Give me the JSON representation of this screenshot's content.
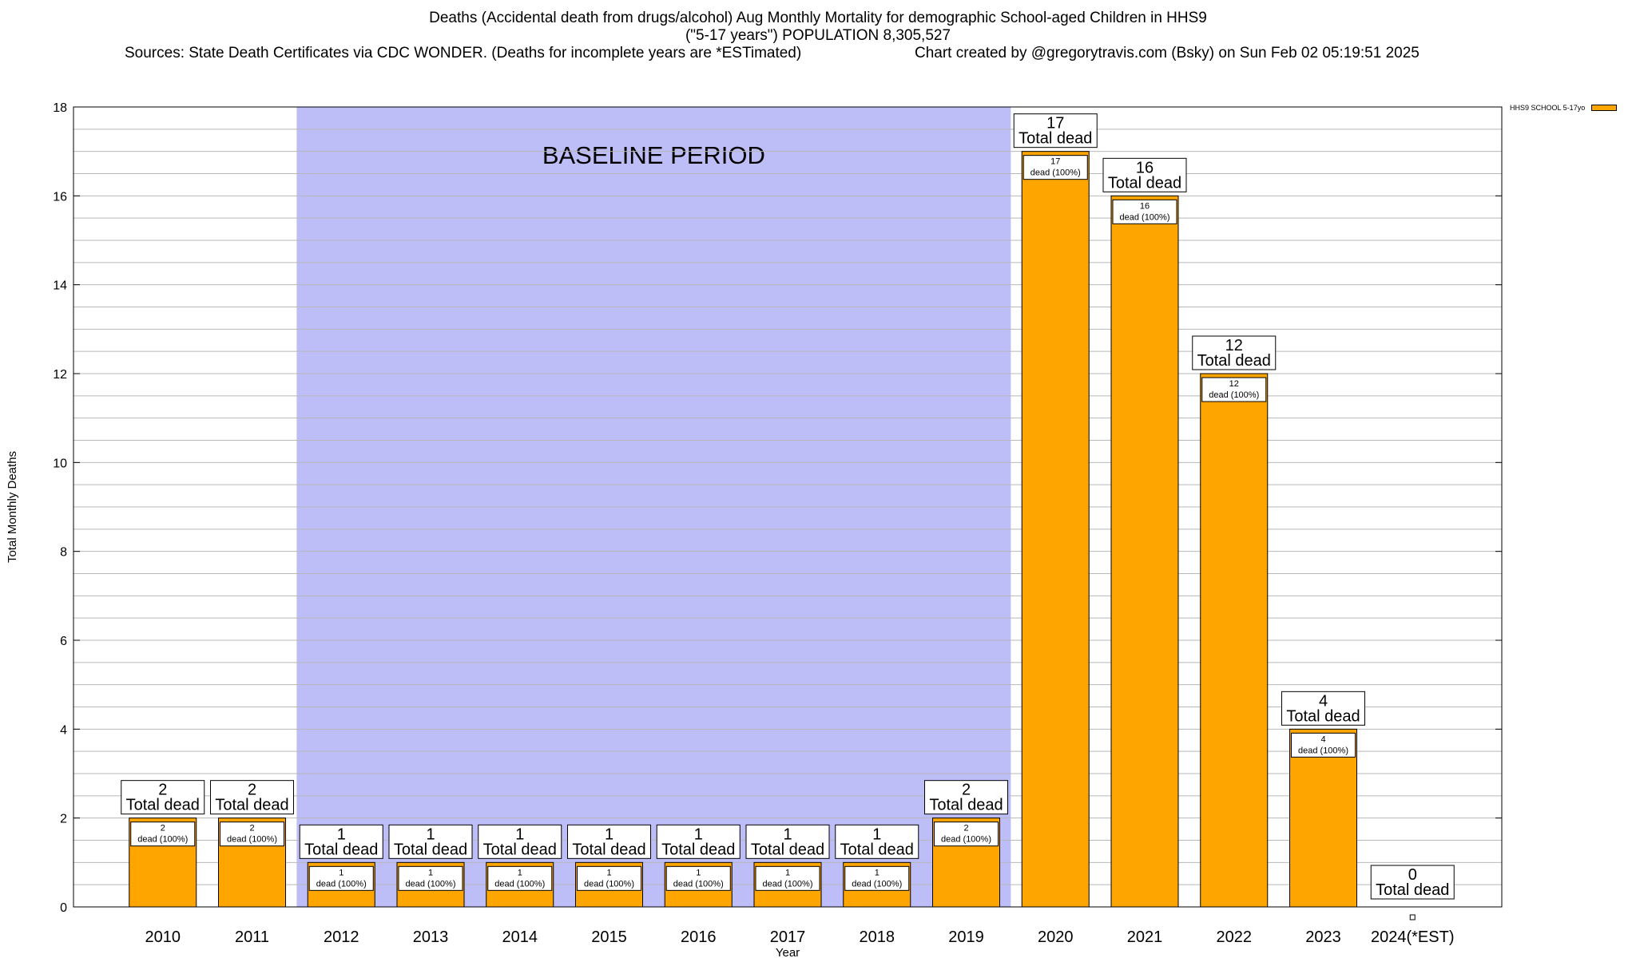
{
  "header": {
    "title_line1": "Deaths (Accidental death from drugs/alcohol) Aug Monthly Mortality for demographic School-aged Children in HHS9",
    "title_line2": "(\"5-17 years\") POPULATION 8,305,527",
    "sources": "Sources: State Death Certificates via CDC WONDER. (Deaths for incomplete years are *ESTimated)",
    "credit": "Chart created by @gregorytravis.com (Bsky) on Sun Feb 02 05:19:51 2025"
  },
  "colors": {
    "bar": "#FFA500",
    "baseline_shade": "#BDBDF8",
    "grid": "#B8B8B8"
  },
  "chart_data": {
    "type": "bar",
    "xlabel": "Year",
    "ylabel": "Total Monthly Deaths",
    "ylim": [
      0,
      18
    ],
    "yticks": [
      0,
      2,
      4,
      6,
      8,
      10,
      12,
      14,
      16,
      18
    ],
    "grid": true,
    "legend_position": "top-right",
    "categories": [
      "2010",
      "2011",
      "2012",
      "2013",
      "2014",
      "2015",
      "2016",
      "2017",
      "2018",
      "2019",
      "2020",
      "2021",
      "2022",
      "2023",
      "2024(*EST)"
    ],
    "series": [
      {
        "name": "HHS9 SCHOOL 5-17yo",
        "color": "#FFA500",
        "values": [
          2,
          2,
          1,
          1,
          1,
          1,
          1,
          1,
          1,
          2,
          17,
          16,
          12,
          4,
          0
        ]
      }
    ],
    "total_labels": [
      {
        "value": "2",
        "text": "Total dead"
      },
      {
        "value": "2",
        "text": "Total dead"
      },
      {
        "value": "1",
        "text": "Total dead"
      },
      {
        "value": "1",
        "text": "Total dead"
      },
      {
        "value": "1",
        "text": "Total dead"
      },
      {
        "value": "1",
        "text": "Total dead"
      },
      {
        "value": "1",
        "text": "Total dead"
      },
      {
        "value": "1",
        "text": "Total dead"
      },
      {
        "value": "1",
        "text": "Total dead"
      },
      {
        "value": "2",
        "text": "Total dead"
      },
      {
        "value": "17",
        "text": "Total dead"
      },
      {
        "value": "16",
        "text": "Total dead"
      },
      {
        "value": "12",
        "text": "Total dead"
      },
      {
        "value": "4",
        "text": "Total dead"
      },
      {
        "value": "0",
        "text": "Total dead"
      }
    ],
    "segment_labels": [
      {
        "value": "2",
        "text": "dead (100%)"
      },
      {
        "value": "2",
        "text": "dead (100%)"
      },
      {
        "value": "1",
        "text": "dead (100%)"
      },
      {
        "value": "1",
        "text": "dead (100%)"
      },
      {
        "value": "1",
        "text": "dead (100%)"
      },
      {
        "value": "1",
        "text": "dead (100%)"
      },
      {
        "value": "1",
        "text": "dead (100%)"
      },
      {
        "value": "1",
        "text": "dead (100%)"
      },
      {
        "value": "1",
        "text": "dead (100%)"
      },
      {
        "value": "2",
        "text": "dead (100%)"
      },
      {
        "value": "17",
        "text": "dead (100%)"
      },
      {
        "value": "16",
        "text": "dead (100%)"
      },
      {
        "value": "12",
        "text": "dead (100%)"
      },
      {
        "value": "4",
        "text": "dead (100%)"
      },
      null
    ],
    "annotations": [
      {
        "text": "BASELINE PERIOD",
        "x_start": "2012",
        "x_end": "2019"
      }
    ]
  }
}
